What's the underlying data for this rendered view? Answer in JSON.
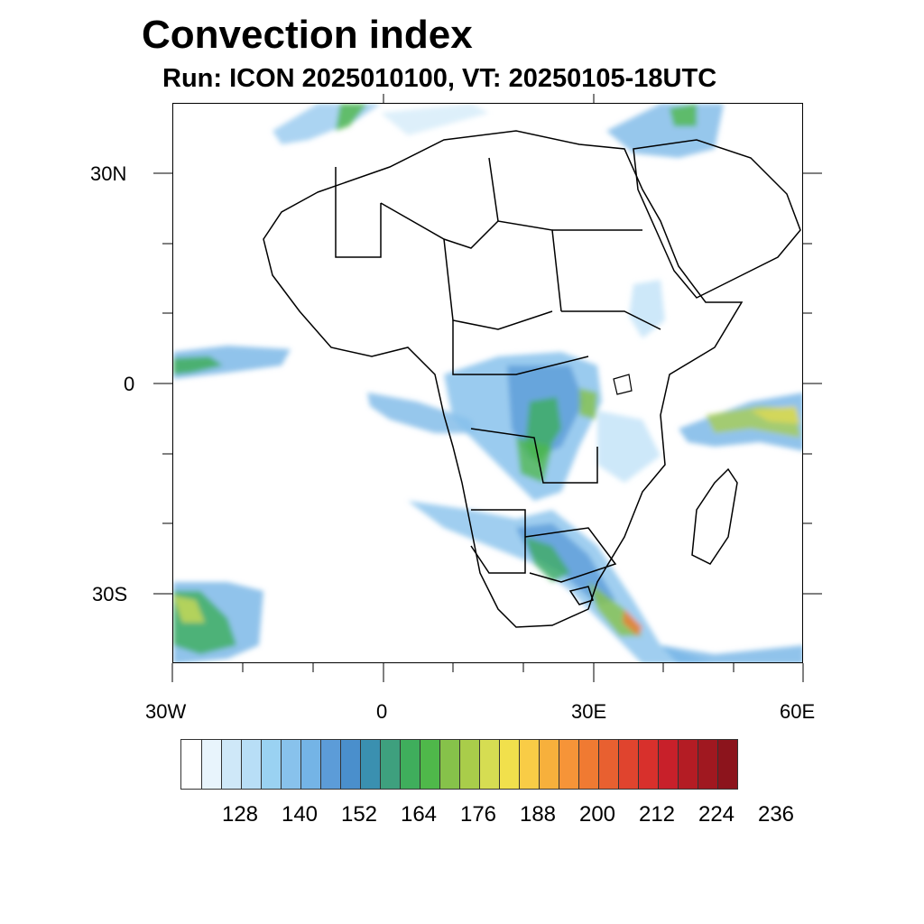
{
  "title": "Convection index",
  "subtitle": "Run: ICON 2025010100,  VT: 20250105-18UTC",
  "map": {
    "projection": "cylindrical equidistant",
    "lon_range": [
      -30,
      60
    ],
    "lat_range": [
      -40,
      40
    ],
    "lon_tick_labels": [
      "30W",
      "0",
      "30E",
      "60E"
    ],
    "lat_tick_labels": [
      "30N",
      "0",
      "30S"
    ],
    "field": "Convection index",
    "high_value_areas": [
      "Congo basin",
      "Zambia / Malawi",
      "Southern Africa (Botswana to Mozambique)",
      "Indian Ocean north of Madagascar",
      "South Atlantic southwest",
      "Mozambique Channel southeast",
      "Eastern Mediterranean"
    ]
  },
  "colorbar": {
    "labels": [
      "128",
      "140",
      "152",
      "164",
      "176",
      "188",
      "200",
      "212",
      "224",
      "236"
    ],
    "colors": [
      "#ffffff",
      "#e8f4fc",
      "#cfe8f8",
      "#b8def6",
      "#9ad2f2",
      "#88c2ec",
      "#74b4e6",
      "#5c9cd8",
      "#4a8fcc",
      "#3a90b0",
      "#3ea07e",
      "#3fae5c",
      "#4fb84a",
      "#86c24a",
      "#a9cd4a",
      "#d6dd52",
      "#f1e04c",
      "#f9cc46",
      "#f7b03c",
      "#f69438",
      "#f07a32",
      "#e86030",
      "#e0442e",
      "#d8302c",
      "#c8202a",
      "#b41c24",
      "#a01820",
      "#8c141c"
    ]
  }
}
